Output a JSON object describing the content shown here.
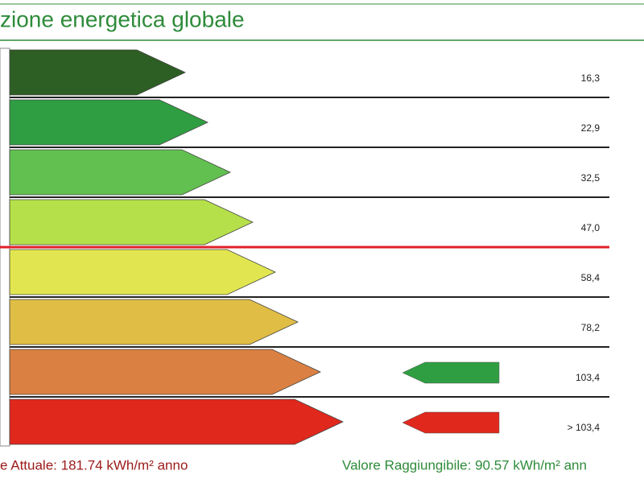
{
  "header": {
    "title": "zione energetica globale"
  },
  "rows": [
    {
      "label": "16,3",
      "color": "#2d5e23"
    },
    {
      "label": "22,9",
      "color": "#2f9e42"
    },
    {
      "label": "32,5",
      "color": "#62c050"
    },
    {
      "label": "47,0",
      "color": "#b6e04a"
    },
    {
      "label": "58,4",
      "color": "#e1e650"
    },
    {
      "label": "78,2",
      "color": "#e0bd45"
    },
    {
      "label": "103,4",
      "color": "#d98042"
    },
    {
      "label": "> 103,4",
      "color": "#e0281d"
    }
  ],
  "footer": {
    "current": "e Attuale: 181.74 kWh/m² anno",
    "target": "Valore Raggiungibile: 90.57 kWh/m² ann"
  }
}
